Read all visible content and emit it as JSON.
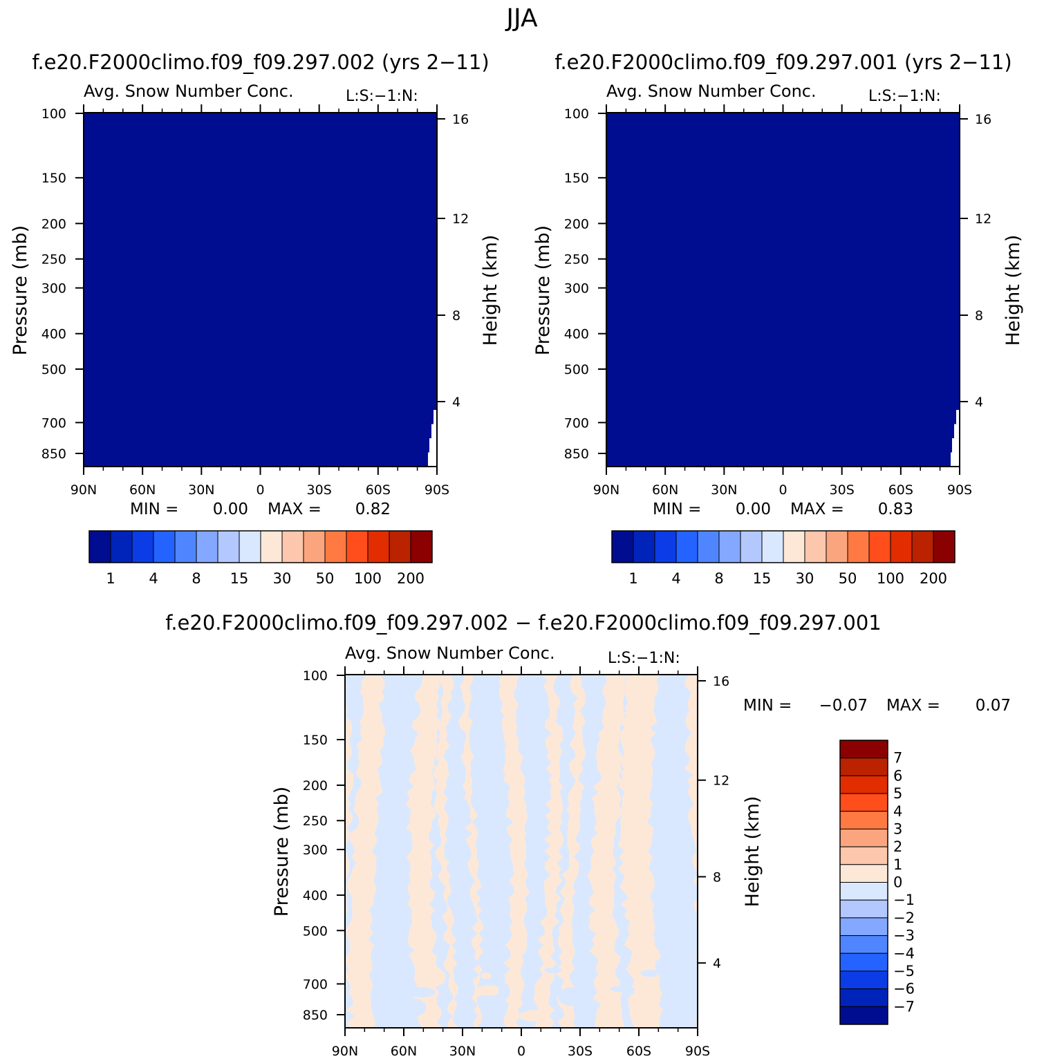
{
  "page_title": "JJA",
  "panels": [
    {
      "id": "left",
      "case_title": "f.e20.F2000climo.f09_f09.297.002 (yrs 2−11)",
      "variable": "Avg. Snow Number Conc.",
      "units": "L:S:−1:N:",
      "ylabel": "Pressure (mb)",
      "y2label": "Height (km)",
      "min_text": "MIN =",
      "min_value": "0.00",
      "max_text": "MAX =",
      "max_value": "0.82"
    },
    {
      "id": "right",
      "case_title": "f.e20.F2000climo.f09_f09.297.001 (yrs 2−11)",
      "variable": "Avg. Snow Number Conc.",
      "units": "L:S:−1:N:",
      "ylabel": "Pressure (mb)",
      "y2label": "Height (km)",
      "min_text": "MIN =",
      "min_value": "0.00",
      "max_text": "MAX =",
      "max_value": "0.83"
    },
    {
      "id": "diff",
      "case_title": "f.e20.F2000climo.f09_f09.297.002 − f.e20.F2000climo.f09_f09.297.001",
      "variable": "Avg. Snow Number Conc.",
      "units": "L:S:−1:N:",
      "ylabel": "Pressure (mb)",
      "y2label": "Height (km)",
      "min_text": "MIN =",
      "min_value": "−0.07",
      "max_text": "MAX =",
      "max_value": "0.07"
    }
  ],
  "chart_data": [
    {
      "type": "heatmap",
      "panel": "left",
      "x_ticks": [
        "90N",
        "60N",
        "30N",
        "0",
        "30S",
        "60S",
        "90S"
      ],
      "y_ticks": [
        100,
        150,
        200,
        250,
        300,
        400,
        500,
        700,
        850
      ],
      "y_scale": "log",
      "ylim": [
        100,
        1000
      ],
      "y2_ticks": [
        16,
        12,
        8,
        4
      ],
      "field_summary": "all values in lowest contour band (< 1)",
      "min": 0.0,
      "max": 0.82,
      "colorbar_levels": [
        "1",
        "4",
        "8",
        "15",
        "30",
        "50",
        "100",
        "200"
      ],
      "colors": [
        "#000d91",
        "#0024ba",
        "#0b3ce6",
        "#2463ff",
        "#4f86ff",
        "#84a8ff",
        "#b3c8ff",
        "#d9e8fe",
        "#fde8d8",
        "#fcc7ad",
        "#fba57f",
        "#ff7a42",
        "#ff4d1c",
        "#e22d00",
        "#ba2200",
        "#8b0000"
      ]
    },
    {
      "type": "heatmap",
      "panel": "right",
      "x_ticks": [
        "90N",
        "60N",
        "30N",
        "0",
        "30S",
        "60S",
        "90S"
      ],
      "y_ticks": [
        100,
        150,
        200,
        250,
        300,
        400,
        500,
        700,
        850
      ],
      "y_scale": "log",
      "ylim": [
        100,
        1000
      ],
      "y2_ticks": [
        16,
        12,
        8,
        4
      ],
      "field_summary": "all values in lowest contour band (< 1)",
      "min": 0.0,
      "max": 0.83,
      "colorbar_levels": [
        "1",
        "4",
        "8",
        "15",
        "30",
        "50",
        "100",
        "200"
      ],
      "colors": [
        "#000d91",
        "#0024ba",
        "#0b3ce6",
        "#2463ff",
        "#4f86ff",
        "#84a8ff",
        "#b3c8ff",
        "#d9e8fe",
        "#fde8d8",
        "#fcc7ad",
        "#fba57f",
        "#ff7a42",
        "#ff4d1c",
        "#e22d00",
        "#ba2200",
        "#8b0000"
      ]
    },
    {
      "type": "heatmap",
      "panel": "diff",
      "x_ticks": [
        "90N",
        "60N",
        "30N",
        "0",
        "30S",
        "60S",
        "90S"
      ],
      "y_ticks": [
        100,
        150,
        200,
        250,
        300,
        400,
        500,
        700,
        850
      ],
      "y_scale": "log",
      "ylim": [
        100,
        1000
      ],
      "y2_ticks": [
        16,
        12,
        8,
        4
      ],
      "field_summary": "alternating bands of values between -1 and 0 (light blue) and 0 and 1 (light peach)",
      "min": -0.07,
      "max": 0.07,
      "colorbar_levels": [
        "7",
        "6",
        "5",
        "4",
        "3",
        "2",
        "1",
        "0",
        "−1",
        "−2",
        "−3",
        "−4",
        "−5",
        "−6",
        "−7"
      ],
      "colors": [
        "#8b0000",
        "#ba2200",
        "#e22d00",
        "#ff4d1c",
        "#ff7a42",
        "#fba57f",
        "#fcc7ad",
        "#fde8d8",
        "#d9e8fe",
        "#b3c8ff",
        "#84a8ff",
        "#4f86ff",
        "#2463ff",
        "#0b3ce6",
        "#0024ba",
        "#000d91"
      ],
      "positive_color": "#fde8d8",
      "negative_color": "#d9e8fe"
    }
  ]
}
